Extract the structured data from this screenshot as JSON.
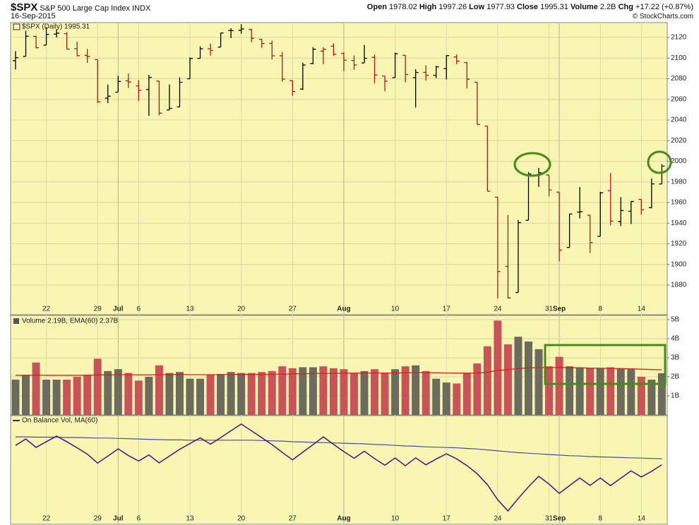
{
  "header": {
    "symbol": "$SPX",
    "name": "S&P 500 Large Cap Index",
    "exchange": "INDX",
    "date": "16-Sep-2015",
    "quote": [
      {
        "label": "Open",
        "value": "1978.02"
      },
      {
        "label": "High",
        "value": "1997.26"
      },
      {
        "label": "Low",
        "value": "1977.93"
      },
      {
        "label": "Close",
        "value": "1995.31"
      },
      {
        "label": "Volume",
        "value": "2.2B"
      },
      {
        "label": "Chg",
        "value": "+17.22 (+0.87%)"
      }
    ],
    "copyright": "© StockCharts.com"
  },
  "chart_data": [
    {
      "type": "ohlc",
      "title": "$SPX (Daily) 1995.31",
      "up_color": "#000000",
      "down_color": "#b01818",
      "categories": [
        null,
        null,
        null,
        "22",
        null,
        null,
        null,
        null,
        "29",
        null,
        "Jul",
        null,
        "6",
        null,
        null,
        null,
        null,
        "13",
        null,
        null,
        null,
        null,
        "20",
        null,
        null,
        null,
        null,
        "27",
        null,
        null,
        null,
        null,
        "Aug",
        null,
        null,
        null,
        null,
        "10",
        null,
        null,
        null,
        null,
        "17",
        null,
        null,
        null,
        null,
        "24",
        null,
        null,
        null,
        null,
        "31",
        "Sep",
        null,
        null,
        null,
        "8",
        null,
        null,
        null,
        "14",
        null,
        null
      ],
      "open": [
        2097.4,
        2101.6,
        2121.1,
        2112.5,
        2123.2,
        2123.7,
        2109.1,
        2102.6,
        2098.6,
        2061.2,
        2067.0,
        2078.0,
        2073.0,
        2069.5,
        2077.7,
        2049.7,
        2052.7,
        2080.0,
        2099.7,
        2109.0,
        2110.6,
        2126.8,
        2126.9,
        2127.6,
        2118.2,
        2114.2,
        2102.2,
        2078.2,
        2070.0,
        2094.7,
        2106.8,
        2111.6,
        2104.5,
        2097.7,
        2095.3,
        2100.8,
        2082.6,
        2081.0,
        2102.7,
        2081.1,
        2086.2,
        2083.2,
        2089.7,
        2101.1,
        2095.7,
        2076.6,
        2034.1,
        1965.2,
        1898.1,
        1872.8,
        1942.8,
        1986.1,
        1986.7,
        1970.1,
        1916.5,
        1950.8,
        1947.8,
        1927.3,
        1971.5,
        1941.6,
        1951.5,
        1963.1,
        1955.1,
        1978.0
      ],
      "high": [
        2106.8,
        2126.6,
        2121.6,
        2129.9,
        2128.0,
        2125.1,
        2116.0,
        2108.9,
        2098.6,
        2074.3,
        2082.8,
        2085.1,
        2078.6,
        2083.7,
        2077.7,
        2074.3,
        2081.3,
        2100.7,
        2111.4,
        2114.1,
        2124.4,
        2128.9,
        2132.8,
        2128.5,
        2118.5,
        2116.9,
        2106.0,
        2078.2,
        2095.6,
        2110.6,
        2110.5,
        2114.2,
        2105.7,
        2102.5,
        2112.7,
        2103.3,
        2082.6,
        2105.3,
        2102.7,
        2089.1,
        2092.9,
        2092.5,
        2102.9,
        2103.5,
        2096.2,
        2076.6,
        2034.1,
        1965.2,
        1948.0,
        1943.1,
        1989.6,
        1993.5,
        1986.7,
        1970.1,
        1948.9,
        1975.0,
        1947.8,
        1970.4,
        1988.6,
        1965.3,
        1961.1,
        1963.1,
        1983.2,
        1997.3
      ],
      "low": [
        2088.9,
        2101.6,
        2109.5,
        2112.5,
        2119.9,
        2108.6,
        2101.8,
        2095.4,
        2056.6,
        2056.3,
        2067.0,
        2071.0,
        2058.4,
        2044.0,
        2044.5,
        2049.7,
        2052.7,
        2080.0,
        2099.7,
        2102.5,
        2110.6,
        2119.4,
        2123.7,
        2115.4,
        2110.0,
        2098.6,
        2077.1,
        2063.5,
        2069.1,
        2094.1,
        2094.1,
        2102.1,
        2087.3,
        2088.6,
        2095.3,
        2075.5,
        2067.9,
        2081.0,
        2076.5,
        2052.1,
        2078.3,
        2080.6,
        2079.3,
        2094.1,
        2070.5,
        2035.7,
        1970.9,
        1867.0,
        1867.0,
        1872.8,
        1942.8,
        1975.2,
        1966.0,
        1903.1,
        1916.5,
        1944.7,
        1911.2,
        1927.3,
        1937.9,
        1937.2,
        1939.2,
        1948.3,
        1954.3,
        1977.9
      ],
      "close": [
        2100.4,
        2121.2,
        2110.0,
        2122.9,
        2124.2,
        2108.6,
        2102.3,
        2101.5,
        2057.6,
        2063.1,
        2077.4,
        2076.8,
        2068.8,
        2081.3,
        2046.7,
        2051.3,
        2076.6,
        2099.6,
        2109.0,
        2107.4,
        2124.3,
        2126.6,
        2128.3,
        2119.2,
        2114.2,
        2102.2,
        2079.7,
        2067.6,
        2093.3,
        2108.6,
        2108.6,
        2103.8,
        2098.0,
        2093.3,
        2099.8,
        2083.6,
        2077.6,
        2104.2,
        2084.1,
        2086.1,
        2083.4,
        2091.5,
        2102.4,
        2096.9,
        2079.6,
        2035.7,
        1970.9,
        1893.2,
        1867.6,
        1940.5,
        1987.7,
        1988.9,
        1972.2,
        1913.9,
        1948.9,
        1951.1,
        1921.2,
        1969.4,
        1942.0,
        1952.3,
        1961.1,
        1953.0,
        1978.1,
        1995.3
      ],
      "ylim": [
        1851.3,
        2134.4
      ],
      "yticks": [
        1880,
        1900,
        1920,
        1940,
        1960,
        1980,
        2000,
        2020,
        2040,
        2060,
        2080,
        2100,
        2120
      ],
      "grid": true
    },
    {
      "type": "volume",
      "title": "Volume 2.19B, EMA(60) 2.37B",
      "series": [
        {
          "type": "bar",
          "up_color": "#6b6b5e",
          "down_color": "#c8545a",
          "values": [
            1.85,
            2.1,
            2.75,
            1.85,
            1.85,
            1.85,
            2.0,
            2.1,
            2.95,
            2.3,
            2.4,
            2.2,
            1.8,
            2.0,
            2.6,
            2.2,
            2.25,
            1.9,
            1.9,
            2.1,
            2.15,
            2.25,
            2.2,
            2.2,
            2.25,
            2.3,
            2.55,
            2.45,
            2.5,
            2.5,
            2.55,
            2.45,
            2.4,
            2.2,
            2.3,
            2.4,
            2.2,
            2.4,
            2.55,
            2.6,
            2.3,
            1.9,
            1.7,
            1.65,
            2.2,
            2.7,
            3.6,
            4.95,
            3.7,
            4.1,
            3.85,
            3.45,
            2.55,
            3.05,
            2.55,
            2.5,
            2.45,
            2.45,
            2.5,
            2.45,
            2.4,
            2.0,
            1.85,
            2.19
          ]
        },
        {
          "type": "line",
          "color": "#d42020",
          "values": [
            2.08,
            2.08,
            2.09,
            2.08,
            2.08,
            2.08,
            2.08,
            2.08,
            2.1,
            2.1,
            2.11,
            2.11,
            2.1,
            2.1,
            2.11,
            2.11,
            2.12,
            2.11,
            2.11,
            2.11,
            2.11,
            2.12,
            2.12,
            2.12,
            2.12,
            2.13,
            2.14,
            2.15,
            2.16,
            2.17,
            2.18,
            2.18,
            2.19,
            2.19,
            2.19,
            2.2,
            2.2,
            2.2,
            2.21,
            2.22,
            2.22,
            2.21,
            2.2,
            2.19,
            2.19,
            2.2,
            2.24,
            2.33,
            2.38,
            2.43,
            2.47,
            2.48,
            2.48,
            2.49,
            2.48,
            2.47,
            2.46,
            2.45,
            2.44,
            2.43,
            2.42,
            2.4,
            2.38,
            2.37
          ]
        }
      ],
      "ylim": [
        0,
        5.22
      ],
      "yticks": [
        {
          "value": 1,
          "label": "1B"
        },
        {
          "value": 2,
          "label": "2B"
        },
        {
          "value": 3,
          "label": "3B"
        },
        {
          "value": 4,
          "label": "4B"
        },
        {
          "value": 5,
          "label": "5B"
        }
      ]
    },
    {
      "type": "line",
      "title": "On Balance Vol, MA(60)",
      "categories": [
        null,
        null,
        null,
        "22",
        null,
        null,
        null,
        null,
        "29",
        null,
        "Jul",
        null,
        "6",
        null,
        null,
        null,
        null,
        "13",
        null,
        null,
        null,
        null,
        "20",
        null,
        null,
        null,
        null,
        "27",
        null,
        null,
        null,
        null,
        "Aug",
        null,
        null,
        null,
        null,
        "10",
        null,
        null,
        null,
        null,
        "17",
        null,
        null,
        null,
        null,
        "24",
        null,
        null,
        null,
        null,
        "31",
        "Sep",
        null,
        null,
        null,
        "8",
        null,
        null,
        null,
        "14",
        null,
        null
      ],
      "series": [
        {
          "color": "#4a4aa8",
          "values": [
            2.8,
            2.8,
            2.7,
            2.7,
            2.7,
            2.6,
            2.6,
            2.5,
            2.4,
            2.4,
            2.3,
            2.2,
            2.1,
            2.0,
            1.9,
            1.8,
            1.8,
            1.7,
            1.7,
            1.7,
            1.7,
            1.7,
            1.7,
            1.7,
            1.6,
            1.5,
            1.4,
            1.2,
            1.1,
            1.0,
            0.9,
            0.8,
            0.7,
            0.6,
            0.5,
            0.3,
            0.2,
            0.0,
            -0.2,
            -0.3,
            -0.5,
            -0.6,
            -0.7,
            -0.8,
            -1.0,
            -1.2,
            -1.5,
            -1.8,
            -2.1,
            -2.4,
            -2.6,
            -2.8,
            -3.0,
            -3.2,
            -3.4,
            -3.5,
            -3.7,
            -3.8,
            -3.9,
            -4.0,
            -4.1,
            -4.2,
            -4.3,
            -4.4
          ]
        },
        {
          "color": "#5b1a7a",
          "values": [
            0,
            2.1,
            -0.65,
            1.2,
            3.05,
            1.2,
            -0.8,
            -2.9,
            -5.85,
            -3.55,
            -1.15,
            -3.35,
            -5.15,
            -3.15,
            -5.75,
            -3.55,
            -1.3,
            0.6,
            2.5,
            0.4,
            2.55,
            4.8,
            7.0,
            4.8,
            2.55,
            0.25,
            -2.3,
            -4.75,
            -2.25,
            0.25,
            2.8,
            0.35,
            -2.05,
            -4.25,
            -1.95,
            -4.35,
            -6.55,
            -4.15,
            -6.7,
            -4.1,
            -6.4,
            -4.5,
            -2.8,
            -4.45,
            -6.65,
            -9.35,
            -12.95,
            -17.9,
            -21.6,
            -17.5,
            -13.65,
            -10.2,
            -12.75,
            -15.8,
            -13.25,
            -10.75,
            -13.2,
            -10.75,
            -13.25,
            -10.8,
            -8.4,
            -10.4,
            -8.55,
            -6.36
          ]
        }
      ],
      "ylim": [
        -26,
        9.8
      ]
    }
  ]
}
